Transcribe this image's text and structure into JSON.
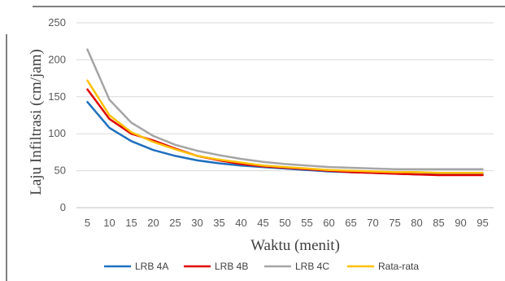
{
  "chart_data": {
    "type": "line",
    "title": "",
    "xlabel": "Waktu (menit)",
    "ylabel": "Laju Infiltrasi (cm/jam)",
    "ylim": [
      0,
      250
    ],
    "yticks": [
      0,
      50,
      100,
      150,
      200,
      250
    ],
    "categories": [
      "5",
      "10",
      "15",
      "20",
      "25",
      "30",
      "35",
      "40",
      "45",
      "50",
      "55",
      "60",
      "65",
      "70",
      "75",
      "80",
      "85",
      "90",
      "95"
    ],
    "grid": "horizontal",
    "legend_position": "bottom",
    "series": [
      {
        "name": "LRB 4A",
        "color": "#1F6FBF",
        "values": [
          143,
          108,
          90,
          78,
          70,
          64,
          60,
          57,
          55,
          53,
          51,
          49,
          48,
          47,
          46,
          45,
          45,
          45,
          45
        ]
      },
      {
        "name": "LRB 4B",
        "color": "#E00000",
        "values": [
          160,
          120,
          100,
          91,
          80,
          70,
          64,
          59,
          56,
          54,
          52,
          50,
          48,
          47,
          46,
          45,
          44,
          44,
          44
        ]
      },
      {
        "name": "LRB 4C",
        "color": "#A5A5A5",
        "values": [
          214,
          146,
          115,
          97,
          85,
          77,
          71,
          66,
          62,
          59,
          57,
          55,
          54,
          53,
          52,
          52,
          52,
          52,
          52
        ]
      },
      {
        "name": "Rata-rata",
        "color": "#FFC000",
        "values": [
          172,
          125,
          102,
          89,
          79,
          70,
          65,
          61,
          57,
          55,
          53,
          51,
          50,
          49,
          48,
          48,
          47,
          47,
          47
        ]
      }
    ]
  }
}
